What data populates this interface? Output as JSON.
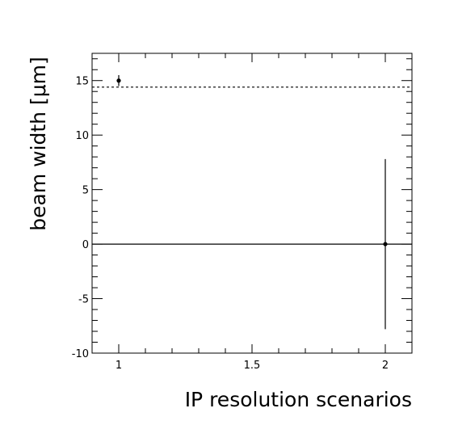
{
  "chart_data": {
    "type": "scatter",
    "xlabel": "IP resolution scenarios",
    "ylabel": "beam width [μm]",
    "xlim": [
      0.9,
      2.1
    ],
    "ylim": [
      -10,
      17.5
    ],
    "x_ticks": [
      {
        "value": 1,
        "label": "1"
      },
      {
        "value": 1.5,
        "label": "1.5"
      },
      {
        "value": 2,
        "label": "2"
      }
    ],
    "y_ticks": [
      {
        "value": -10,
        "label": "-10"
      },
      {
        "value": -5,
        "label": "-5"
      },
      {
        "value": 0,
        "label": "0"
      },
      {
        "value": 5,
        "label": "5"
      },
      {
        "value": 10,
        "label": "10"
      },
      {
        "value": 15,
        "label": "15"
      }
    ],
    "points": [
      {
        "x": 1,
        "y": 15.0,
        "yerr": 0.5
      },
      {
        "x": 2,
        "y": 0.0,
        "yerr": 7.8
      }
    ],
    "reference_lines": [
      {
        "y": 0,
        "style": "solid"
      },
      {
        "y": 14.4,
        "style": "dashed"
      }
    ],
    "grid": false,
    "legend": "none",
    "colors": {
      "axes": "#000000",
      "markers": "#000000",
      "background": "#ffffff"
    }
  }
}
